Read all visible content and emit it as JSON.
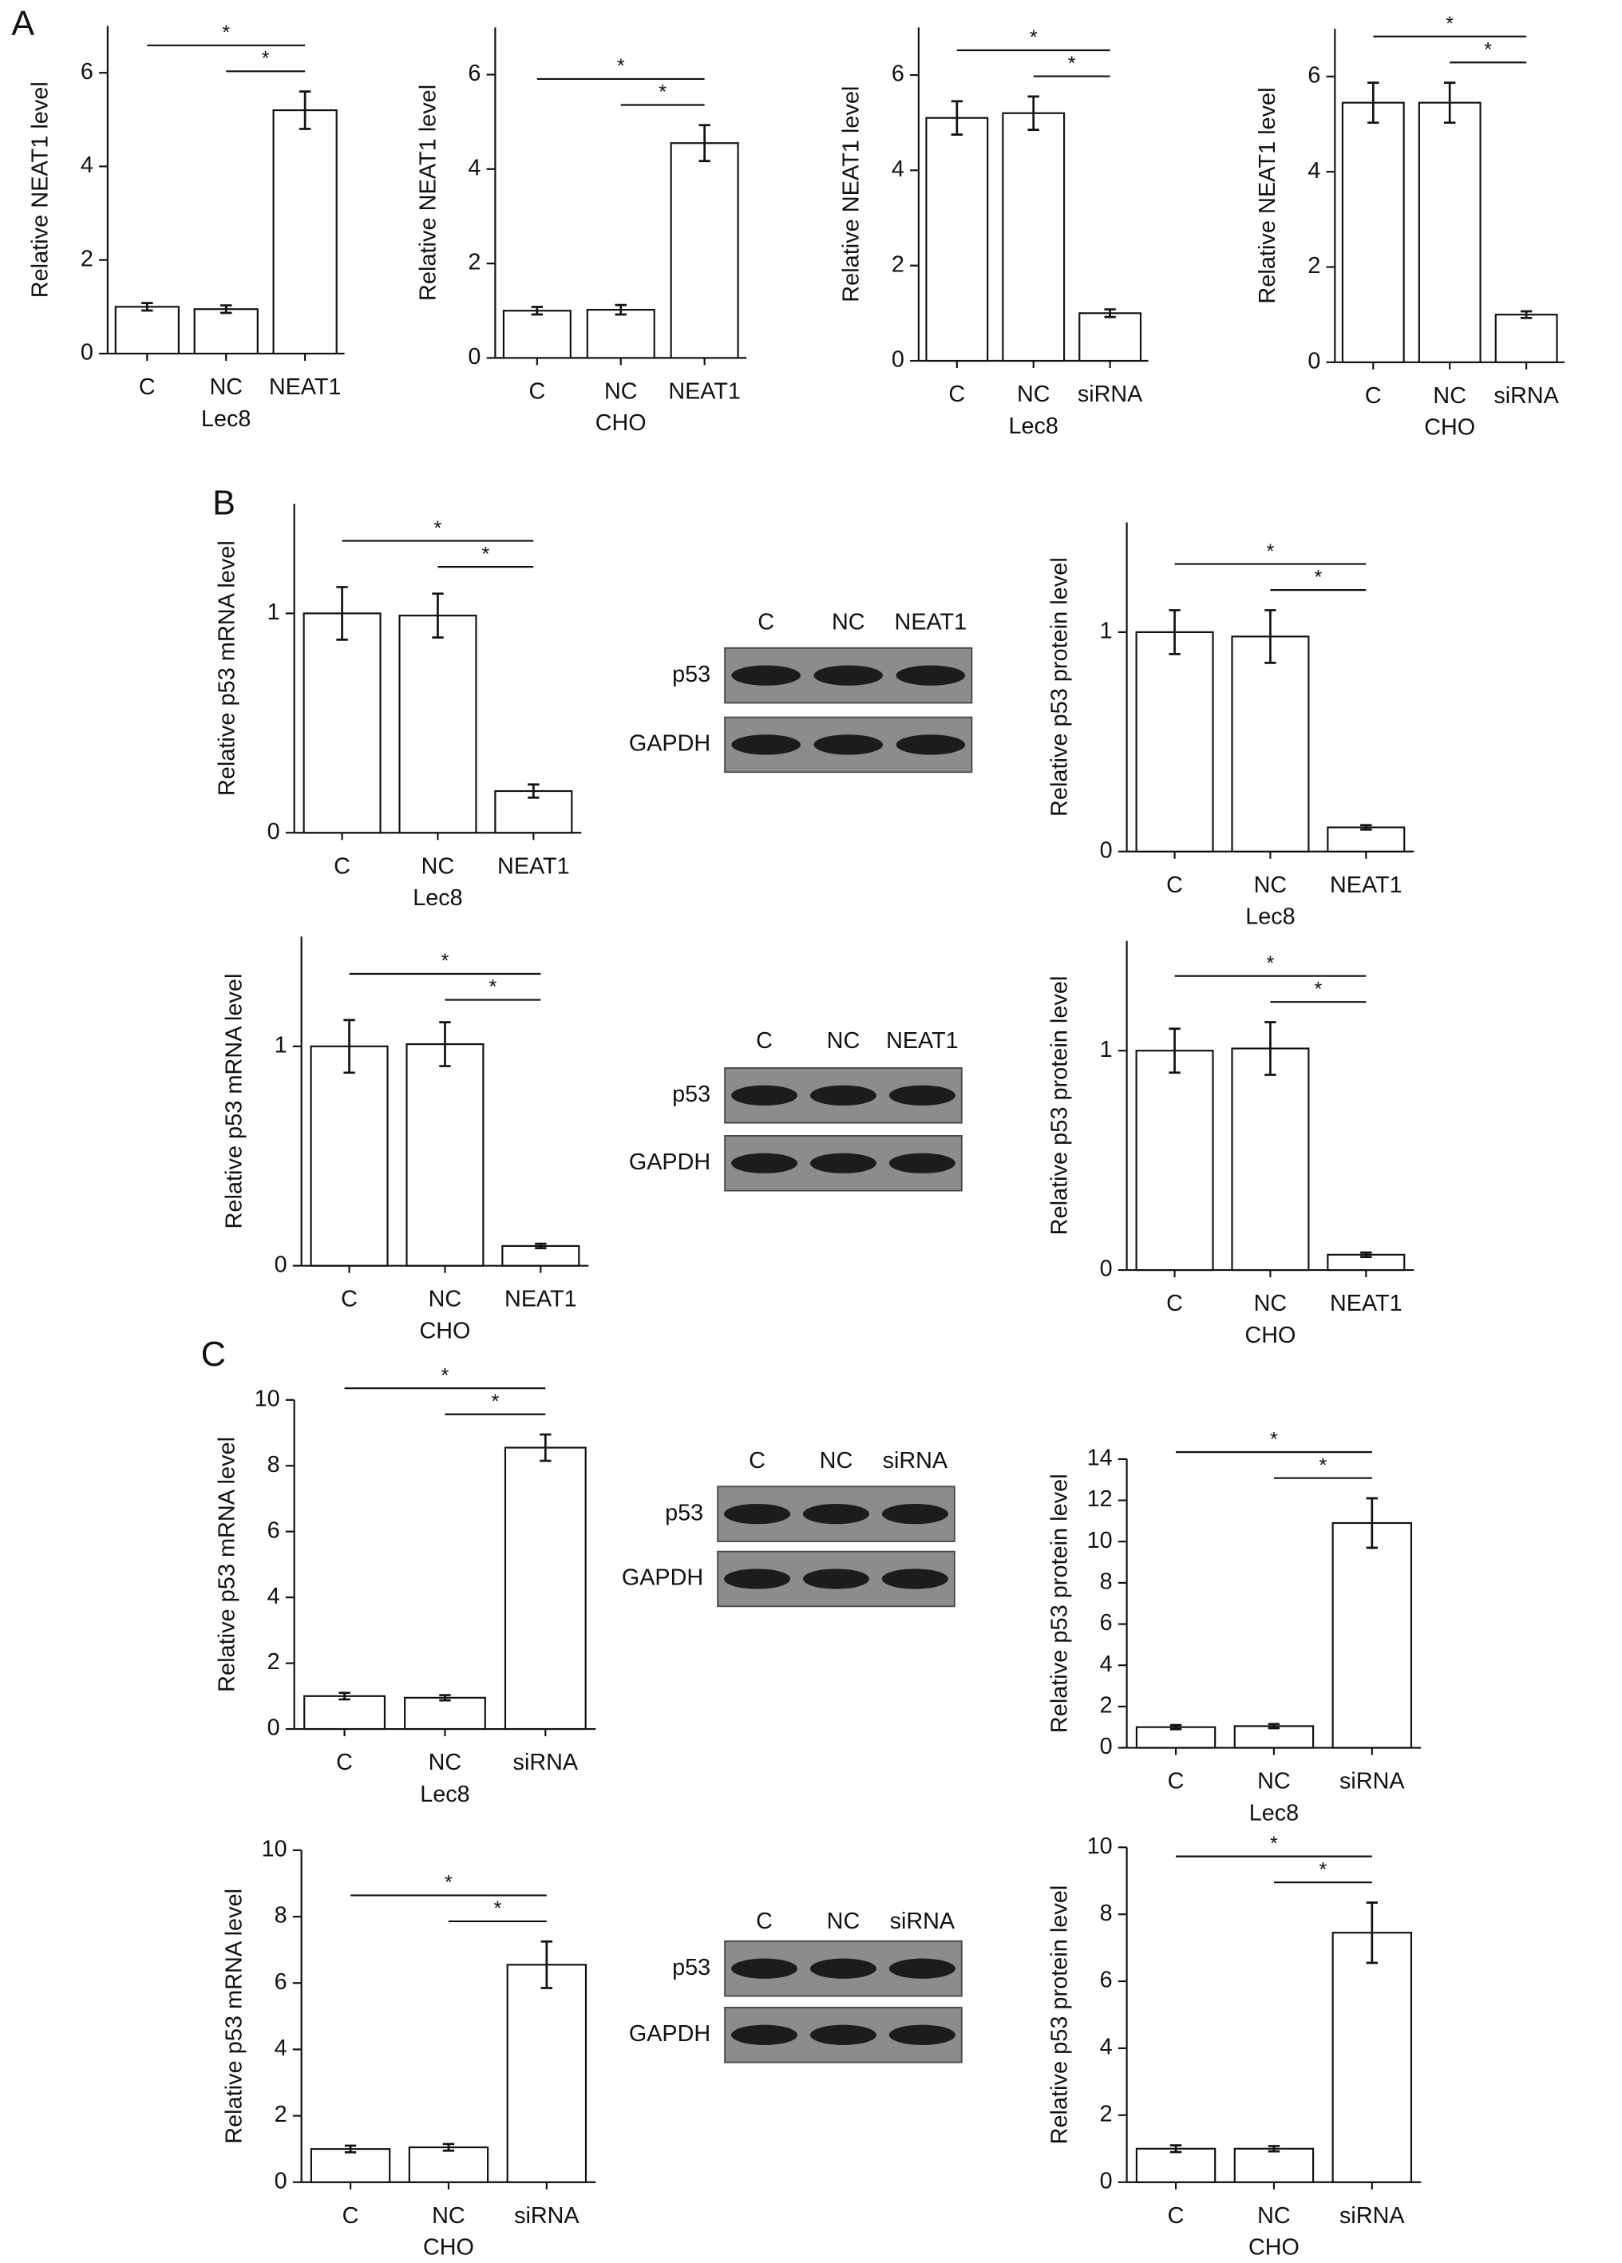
{
  "panels": [
    "A",
    "B",
    "C"
  ],
  "chart_data": [
    {
      "type": "bar",
      "ylabel": "Relative NEAT1 level",
      "xlabel": "Lec8",
      "categories": [
        "C",
        "NC",
        "NEAT1"
      ],
      "values": [
        1.0,
        0.95,
        5.2
      ],
      "errors": [
        0.08,
        0.08,
        0.4
      ],
      "ylim": [
        0,
        7
      ],
      "yticks": [
        0,
        2,
        4,
        6
      ],
      "significance": [
        "*",
        "*"
      ],
      "color": "#ffffff"
    },
    {
      "type": "bar",
      "ylabel": "Relative NEAT1 level",
      "xlabel": "CHO",
      "categories": [
        "C",
        "NC",
        "NEAT1"
      ],
      "values": [
        1.0,
        1.02,
        4.55
      ],
      "errors": [
        0.08,
        0.1,
        0.38
      ],
      "ylim": [
        0,
        7
      ],
      "yticks": [
        0,
        2,
        4,
        6
      ],
      "significance": [
        "*",
        "*"
      ],
      "color": "#ffffff"
    },
    {
      "type": "bar",
      "ylabel": "Relative NEAT1 level",
      "xlabel": "Lec8",
      "categories": [
        "C",
        "NC",
        "siRNA"
      ],
      "values": [
        5.1,
        5.2,
        1.0
      ],
      "errors": [
        0.35,
        0.35,
        0.08
      ],
      "ylim": [
        0,
        7
      ],
      "yticks": [
        0,
        2,
        4,
        6
      ],
      "significance": [
        "*",
        "*"
      ],
      "color": "#ffffff"
    },
    {
      "type": "bar",
      "ylabel": "Relative NEAT1 level",
      "xlabel": "CHO",
      "categories": [
        "C",
        "NC",
        "siRNA"
      ],
      "values": [
        5.45,
        5.45,
        1.0
      ],
      "errors": [
        0.42,
        0.42,
        0.07
      ],
      "ylim": [
        0,
        7
      ],
      "yticks": [
        0,
        2,
        4,
        6
      ],
      "significance": [
        "*",
        "*"
      ],
      "color": "#ffffff"
    },
    {
      "type": "bar",
      "ylabel": "Relative p53 mRNA level",
      "xlabel": "Lec8",
      "categories": [
        "C",
        "NC",
        "NEAT1"
      ],
      "values": [
        1.0,
        0.99,
        0.19
      ],
      "errors": [
        0.12,
        0.1,
        0.03
      ],
      "ylim": [
        0,
        1.5
      ],
      "yticks": [
        0,
        1
      ],
      "significance": [
        "*",
        "*"
      ],
      "color": "#ffffff"
    },
    {
      "type": "bar",
      "ylabel": "Relative p53 protein level",
      "xlabel": "Lec8",
      "categories": [
        "C",
        "NC",
        "NEAT1"
      ],
      "values": [
        1.0,
        0.98,
        0.11
      ],
      "errors": [
        0.1,
        0.12,
        0.01
      ],
      "ylim": [
        0,
        1.5
      ],
      "yticks": [
        0,
        1
      ],
      "significance": [
        "*",
        "*"
      ],
      "color": "#ffffff"
    },
    {
      "type": "bar",
      "ylabel": "Relative p53 mRNA level",
      "xlabel": "CHO",
      "categories": [
        "C",
        "NC",
        "NEAT1"
      ],
      "values": [
        1.0,
        1.01,
        0.09
      ],
      "errors": [
        0.12,
        0.1,
        0.01
      ],
      "ylim": [
        0,
        1.5
      ],
      "yticks": [
        0,
        1
      ],
      "significance": [
        "*",
        "*"
      ],
      "color": "#ffffff"
    },
    {
      "type": "bar",
      "ylabel": "Relative p53 protein level",
      "xlabel": "CHO",
      "categories": [
        "C",
        "NC",
        "NEAT1"
      ],
      "values": [
        1.0,
        1.01,
        0.07
      ],
      "errors": [
        0.1,
        0.12,
        0.01
      ],
      "ylim": [
        0,
        1.5
      ],
      "yticks": [
        0,
        1
      ],
      "significance": [
        "*",
        "*"
      ],
      "color": "#ffffff"
    },
    {
      "type": "bar",
      "ylabel": "Relative p53 mRNA level",
      "xlabel": "Lec8",
      "categories": [
        "C",
        "NC",
        "siRNA"
      ],
      "values": [
        1.0,
        0.95,
        8.55
      ],
      "errors": [
        0.1,
        0.08,
        0.4
      ],
      "ylim": [
        0,
        10
      ],
      "yticks": [
        0,
        2,
        4,
        6,
        8,
        10
      ],
      "significance": [
        "*",
        "*"
      ],
      "color": "#ffffff"
    },
    {
      "type": "bar",
      "ylabel": "Relative p53 protein level",
      "xlabel": "Lec8",
      "categories": [
        "C",
        "NC",
        "siRNA"
      ],
      "values": [
        1.0,
        1.05,
        10.9
      ],
      "errors": [
        0.1,
        0.1,
        1.2
      ],
      "ylim": [
        0,
        14
      ],
      "yticks": [
        0,
        2,
        4,
        6,
        8,
        10,
        12,
        14
      ],
      "significance": [
        "*",
        "*"
      ],
      "color": "#ffffff"
    },
    {
      "type": "bar",
      "ylabel": "Relative p53 mRNA level",
      "xlabel": "CHO",
      "categories": [
        "C",
        "NC",
        "siRNA"
      ],
      "values": [
        1.0,
        1.05,
        6.55
      ],
      "errors": [
        0.1,
        0.1,
        0.7
      ],
      "ylim": [
        0,
        10
      ],
      "yticks": [
        0,
        2,
        4,
        6,
        8,
        10
      ],
      "significance": [
        "*",
        "*"
      ],
      "color": "#ffffff"
    },
    {
      "type": "bar",
      "ylabel": "Relative p53 protein level",
      "xlabel": "CHO",
      "categories": [
        "C",
        "NC",
        "siRNA"
      ],
      "values": [
        1.0,
        1.0,
        7.45
      ],
      "errors": [
        0.1,
        0.08,
        0.9
      ],
      "ylim": [
        0,
        10
      ],
      "yticks": [
        0,
        2,
        4,
        6,
        8,
        10
      ],
      "significance": [
        "*",
        "*"
      ],
      "color": "#ffffff"
    }
  ],
  "blots": [
    {
      "lanes": [
        "C",
        "NC",
        "NEAT1"
      ],
      "rows": [
        "p53",
        "GAPDH"
      ]
    },
    {
      "lanes": [
        "C",
        "NC",
        "NEAT1"
      ],
      "rows": [
        "p53",
        "GAPDH"
      ]
    },
    {
      "lanes": [
        "C",
        "NC",
        "siRNA"
      ],
      "rows": [
        "p53",
        "GAPDH"
      ]
    },
    {
      "lanes": [
        "C",
        "NC",
        "siRNA"
      ],
      "rows": [
        "p53",
        "GAPDH"
      ]
    }
  ]
}
